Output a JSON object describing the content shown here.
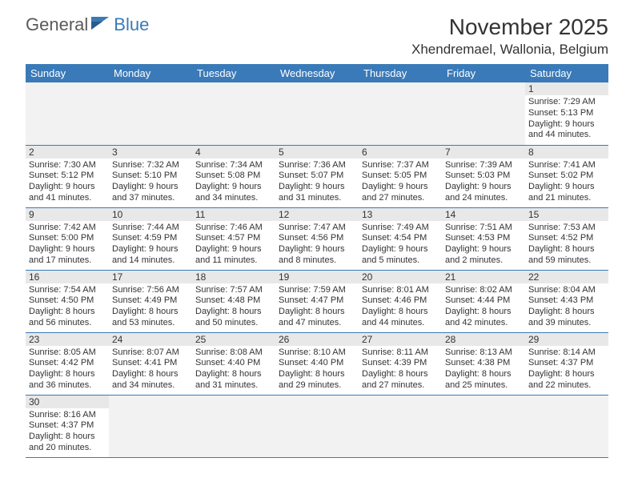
{
  "logo": {
    "general": "General",
    "blue": "Blue"
  },
  "header": {
    "month_title": "November 2025",
    "location": "Xhendremael, Wallonia, Belgium"
  },
  "colors": {
    "header_bg": "#3a7ab8",
    "header_text": "#ffffff",
    "daynum_bg": "#e8e8e8",
    "border": "#3a7ab8",
    "empty_bg": "#f2f2f2",
    "text": "#333333",
    "logo_gray": "#5a5a5a",
    "logo_blue": "#3a7ab8",
    "background": "#ffffff"
  },
  "weekdays": [
    "Sunday",
    "Monday",
    "Tuesday",
    "Wednesday",
    "Thursday",
    "Friday",
    "Saturday"
  ],
  "days": {
    "1": {
      "sunrise": "Sunrise: 7:29 AM",
      "sunset": "Sunset: 5:13 PM",
      "daylight": "Daylight: 9 hours and 44 minutes."
    },
    "2": {
      "sunrise": "Sunrise: 7:30 AM",
      "sunset": "Sunset: 5:12 PM",
      "daylight": "Daylight: 9 hours and 41 minutes."
    },
    "3": {
      "sunrise": "Sunrise: 7:32 AM",
      "sunset": "Sunset: 5:10 PM",
      "daylight": "Daylight: 9 hours and 37 minutes."
    },
    "4": {
      "sunrise": "Sunrise: 7:34 AM",
      "sunset": "Sunset: 5:08 PM",
      "daylight": "Daylight: 9 hours and 34 minutes."
    },
    "5": {
      "sunrise": "Sunrise: 7:36 AM",
      "sunset": "Sunset: 5:07 PM",
      "daylight": "Daylight: 9 hours and 31 minutes."
    },
    "6": {
      "sunrise": "Sunrise: 7:37 AM",
      "sunset": "Sunset: 5:05 PM",
      "daylight": "Daylight: 9 hours and 27 minutes."
    },
    "7": {
      "sunrise": "Sunrise: 7:39 AM",
      "sunset": "Sunset: 5:03 PM",
      "daylight": "Daylight: 9 hours and 24 minutes."
    },
    "8": {
      "sunrise": "Sunrise: 7:41 AM",
      "sunset": "Sunset: 5:02 PM",
      "daylight": "Daylight: 9 hours and 21 minutes."
    },
    "9": {
      "sunrise": "Sunrise: 7:42 AM",
      "sunset": "Sunset: 5:00 PM",
      "daylight": "Daylight: 9 hours and 17 minutes."
    },
    "10": {
      "sunrise": "Sunrise: 7:44 AM",
      "sunset": "Sunset: 4:59 PM",
      "daylight": "Daylight: 9 hours and 14 minutes."
    },
    "11": {
      "sunrise": "Sunrise: 7:46 AM",
      "sunset": "Sunset: 4:57 PM",
      "daylight": "Daylight: 9 hours and 11 minutes."
    },
    "12": {
      "sunrise": "Sunrise: 7:47 AM",
      "sunset": "Sunset: 4:56 PM",
      "daylight": "Daylight: 9 hours and 8 minutes."
    },
    "13": {
      "sunrise": "Sunrise: 7:49 AM",
      "sunset": "Sunset: 4:54 PM",
      "daylight": "Daylight: 9 hours and 5 minutes."
    },
    "14": {
      "sunrise": "Sunrise: 7:51 AM",
      "sunset": "Sunset: 4:53 PM",
      "daylight": "Daylight: 9 hours and 2 minutes."
    },
    "15": {
      "sunrise": "Sunrise: 7:53 AM",
      "sunset": "Sunset: 4:52 PM",
      "daylight": "Daylight: 8 hours and 59 minutes."
    },
    "16": {
      "sunrise": "Sunrise: 7:54 AM",
      "sunset": "Sunset: 4:50 PM",
      "daylight": "Daylight: 8 hours and 56 minutes."
    },
    "17": {
      "sunrise": "Sunrise: 7:56 AM",
      "sunset": "Sunset: 4:49 PM",
      "daylight": "Daylight: 8 hours and 53 minutes."
    },
    "18": {
      "sunrise": "Sunrise: 7:57 AM",
      "sunset": "Sunset: 4:48 PM",
      "daylight": "Daylight: 8 hours and 50 minutes."
    },
    "19": {
      "sunrise": "Sunrise: 7:59 AM",
      "sunset": "Sunset: 4:47 PM",
      "daylight": "Daylight: 8 hours and 47 minutes."
    },
    "20": {
      "sunrise": "Sunrise: 8:01 AM",
      "sunset": "Sunset: 4:46 PM",
      "daylight": "Daylight: 8 hours and 44 minutes."
    },
    "21": {
      "sunrise": "Sunrise: 8:02 AM",
      "sunset": "Sunset: 4:44 PM",
      "daylight": "Daylight: 8 hours and 42 minutes."
    },
    "22": {
      "sunrise": "Sunrise: 8:04 AM",
      "sunset": "Sunset: 4:43 PM",
      "daylight": "Daylight: 8 hours and 39 minutes."
    },
    "23": {
      "sunrise": "Sunrise: 8:05 AM",
      "sunset": "Sunset: 4:42 PM",
      "daylight": "Daylight: 8 hours and 36 minutes."
    },
    "24": {
      "sunrise": "Sunrise: 8:07 AM",
      "sunset": "Sunset: 4:41 PM",
      "daylight": "Daylight: 8 hours and 34 minutes."
    },
    "25": {
      "sunrise": "Sunrise: 8:08 AM",
      "sunset": "Sunset: 4:40 PM",
      "daylight": "Daylight: 8 hours and 31 minutes."
    },
    "26": {
      "sunrise": "Sunrise: 8:10 AM",
      "sunset": "Sunset: 4:40 PM",
      "daylight": "Daylight: 8 hours and 29 minutes."
    },
    "27": {
      "sunrise": "Sunrise: 8:11 AM",
      "sunset": "Sunset: 4:39 PM",
      "daylight": "Daylight: 8 hours and 27 minutes."
    },
    "28": {
      "sunrise": "Sunrise: 8:13 AM",
      "sunset": "Sunset: 4:38 PM",
      "daylight": "Daylight: 8 hours and 25 minutes."
    },
    "29": {
      "sunrise": "Sunrise: 8:14 AM",
      "sunset": "Sunset: 4:37 PM",
      "daylight": "Daylight: 8 hours and 22 minutes."
    },
    "30": {
      "sunrise": "Sunrise: 8:16 AM",
      "sunset": "Sunset: 4:37 PM",
      "daylight": "Daylight: 8 hours and 20 minutes."
    }
  },
  "grid": [
    [
      null,
      null,
      null,
      null,
      null,
      null,
      "1"
    ],
    [
      "2",
      "3",
      "4",
      "5",
      "6",
      "7",
      "8"
    ],
    [
      "9",
      "10",
      "11",
      "12",
      "13",
      "14",
      "15"
    ],
    [
      "16",
      "17",
      "18",
      "19",
      "20",
      "21",
      "22"
    ],
    [
      "23",
      "24",
      "25",
      "26",
      "27",
      "28",
      "29"
    ],
    [
      "30",
      null,
      null,
      null,
      null,
      null,
      null
    ]
  ]
}
